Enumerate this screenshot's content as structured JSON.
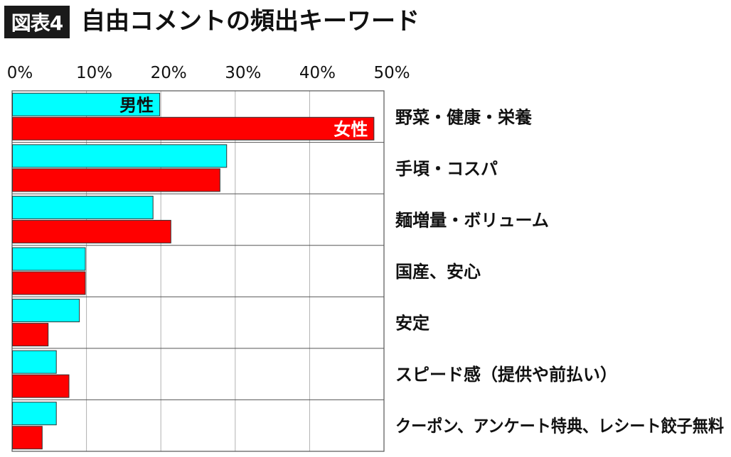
{
  "header": {
    "badge": "図表4",
    "title": "自由コメントの頻出キーワード"
  },
  "colors": {
    "male": "#00ffff",
    "female": "#ff0000",
    "bar_stroke": "#333333",
    "grid": "#b0b0b0",
    "frame": "#555555"
  },
  "chart_data": {
    "type": "bar",
    "orientation": "horizontal",
    "title": "自由コメントの頻出キーワード",
    "xlim": [
      0,
      50
    ],
    "x_ticks": [
      "0%",
      "10%",
      "20%",
      "30%",
      "40%",
      "50%"
    ],
    "x_tick_values": [
      0,
      10,
      20,
      30,
      40,
      50
    ],
    "grid": true,
    "categories": [
      "野菜・健康・栄養",
      "手頃・コスパ",
      "麺増量・ボリューム",
      "国産、安心",
      "安定",
      "スピード感（提供や前払い）",
      "クーポン、アンケート特典、レシート餃子無料"
    ],
    "series": [
      {
        "name": "男性",
        "values": [
          19.8,
          28.8,
          18.9,
          9.8,
          9.0,
          5.9,
          5.9
        ]
      },
      {
        "name": "女性",
        "values": [
          48.6,
          27.9,
          21.3,
          9.8,
          4.8,
          7.6,
          4.0
        ]
      }
    ]
  }
}
